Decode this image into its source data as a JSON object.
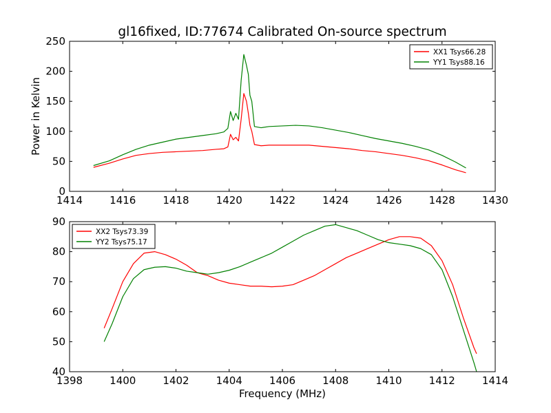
{
  "figure": {
    "title": "gl16fixed, ID:77674 Calibrated On-source spectrum"
  },
  "chart_data": [
    {
      "type": "line",
      "ylabel": "Power in Kelvin",
      "xlabel": "",
      "xlim": [
        1414,
        1430
      ],
      "ylim": [
        0,
        250
      ],
      "xticks": [
        1414,
        1416,
        1418,
        1420,
        1422,
        1424,
        1426,
        1428,
        1430
      ],
      "yticks": [
        0,
        50,
        100,
        150,
        200,
        250
      ],
      "legend_position": "top-right",
      "grid": false,
      "series": [
        {
          "name": "XX1 Tsys66.28",
          "color": "#ff0000",
          "points": [
            [
              1414.9,
              40
            ],
            [
              1415.5,
              47
            ],
            [
              1416,
              54
            ],
            [
              1416.5,
              60
            ],
            [
              1417,
              63
            ],
            [
              1417.5,
              65
            ],
            [
              1418,
              66
            ],
            [
              1418.5,
              67
            ],
            [
              1419,
              68
            ],
            [
              1419.5,
              70
            ],
            [
              1419.8,
              71
            ],
            [
              1419.95,
              74
            ],
            [
              1420.05,
              95
            ],
            [
              1420.15,
              86
            ],
            [
              1420.25,
              90
            ],
            [
              1420.35,
              84
            ],
            [
              1420.45,
              120
            ],
            [
              1420.55,
              163
            ],
            [
              1420.65,
              150
            ],
            [
              1420.72,
              130
            ],
            [
              1420.78,
              110
            ],
            [
              1420.85,
              100
            ],
            [
              1420.95,
              78
            ],
            [
              1421.2,
              76
            ],
            [
              1421.5,
              77
            ],
            [
              1422,
              77
            ],
            [
              1422.5,
              77
            ],
            [
              1423,
              77
            ],
            [
              1423.5,
              75
            ],
            [
              1424,
              73
            ],
            [
              1424.5,
              71
            ],
            [
              1425,
              68
            ],
            [
              1425.5,
              66
            ],
            [
              1426,
              63
            ],
            [
              1426.5,
              60
            ],
            [
              1427,
              56
            ],
            [
              1427.5,
              51
            ],
            [
              1428,
              44
            ],
            [
              1428.5,
              36
            ],
            [
              1428.9,
              31
            ]
          ]
        },
        {
          "name": "YY1 Tsys88.16",
          "color": "#008000",
          "points": [
            [
              1414.9,
              43
            ],
            [
              1415.5,
              51
            ],
            [
              1416,
              61
            ],
            [
              1416.5,
              70
            ],
            [
              1417,
              77
            ],
            [
              1417.5,
              82
            ],
            [
              1418,
              87
            ],
            [
              1418.5,
              90
            ],
            [
              1419,
              93
            ],
            [
              1419.5,
              96
            ],
            [
              1419.8,
              99
            ],
            [
              1419.95,
              105
            ],
            [
              1420.05,
              133
            ],
            [
              1420.15,
              118
            ],
            [
              1420.25,
              130
            ],
            [
              1420.35,
              120
            ],
            [
              1420.45,
              185
            ],
            [
              1420.55,
              228
            ],
            [
              1420.65,
              210
            ],
            [
              1420.72,
              195
            ],
            [
              1420.78,
              160
            ],
            [
              1420.85,
              150
            ],
            [
              1420.95,
              108
            ],
            [
              1421.2,
              106
            ],
            [
              1421.5,
              108
            ],
            [
              1422,
              109
            ],
            [
              1422.5,
              110
            ],
            [
              1423,
              109
            ],
            [
              1423.5,
              106
            ],
            [
              1424,
              102
            ],
            [
              1424.5,
              98
            ],
            [
              1425,
              93
            ],
            [
              1425.5,
              88
            ],
            [
              1426,
              84
            ],
            [
              1426.5,
              80
            ],
            [
              1427,
              75
            ],
            [
              1427.5,
              69
            ],
            [
              1428,
              60
            ],
            [
              1428.5,
              49
            ],
            [
              1428.9,
              39
            ]
          ]
        }
      ]
    },
    {
      "type": "line",
      "ylabel": "",
      "xlabel": "Frequency (MHz)",
      "xlim": [
        1398,
        1414
      ],
      "ylim": [
        40,
        90
      ],
      "xticks": [
        1398,
        1400,
        1402,
        1404,
        1406,
        1408,
        1410,
        1412,
        1414
      ],
      "yticks": [
        40,
        50,
        60,
        70,
        80,
        90
      ],
      "legend_position": "top-left",
      "grid": false,
      "series": [
        {
          "name": "XX2 Tsys73.39",
          "color": "#ff0000",
          "points": [
            [
              1399.3,
              54.5
            ],
            [
              1399.6,
              61
            ],
            [
              1400,
              70
            ],
            [
              1400.4,
              76
            ],
            [
              1400.8,
              79.5
            ],
            [
              1401.2,
              80
            ],
            [
              1401.6,
              79
            ],
            [
              1402,
              77.5
            ],
            [
              1402.4,
              75.5
            ],
            [
              1402.8,
              73
            ],
            [
              1403.2,
              72
            ],
            [
              1403.6,
              70.5
            ],
            [
              1404,
              69.5
            ],
            [
              1404.4,
              69
            ],
            [
              1404.8,
              68.5
            ],
            [
              1405.2,
              68.5
            ],
            [
              1405.6,
              68.3
            ],
            [
              1406,
              68.5
            ],
            [
              1406.4,
              69
            ],
            [
              1406.8,
              70.5
            ],
            [
              1407.2,
              72
            ],
            [
              1407.6,
              74
            ],
            [
              1408,
              76
            ],
            [
              1408.4,
              78
            ],
            [
              1408.8,
              79.5
            ],
            [
              1409.2,
              81
            ],
            [
              1409.6,
              82.5
            ],
            [
              1410,
              84
            ],
            [
              1410.4,
              85
            ],
            [
              1410.8,
              85
            ],
            [
              1411.2,
              84.5
            ],
            [
              1411.6,
              82
            ],
            [
              1412,
              77
            ],
            [
              1412.4,
              69
            ],
            [
              1412.8,
              58
            ],
            [
              1413.2,
              48
            ],
            [
              1413.3,
              46
            ]
          ]
        },
        {
          "name": "YY2 Tsys75.17",
          "color": "#008000",
          "points": [
            [
              1399.3,
              50
            ],
            [
              1399.6,
              56
            ],
            [
              1400,
              65
            ],
            [
              1400.4,
              71
            ],
            [
              1400.8,
              74
            ],
            [
              1401.2,
              74.8
            ],
            [
              1401.6,
              75
            ],
            [
              1402,
              74.5
            ],
            [
              1402.4,
              73.5
            ],
            [
              1402.8,
              73
            ],
            [
              1403.2,
              72.5
            ],
            [
              1403.6,
              73
            ],
            [
              1404,
              73.8
            ],
            [
              1404.4,
              75
            ],
            [
              1404.8,
              76.5
            ],
            [
              1405.2,
              78
            ],
            [
              1405.6,
              79.5
            ],
            [
              1406,
              81.5
            ],
            [
              1406.4,
              83.5
            ],
            [
              1406.8,
              85.5
            ],
            [
              1407.2,
              87
            ],
            [
              1407.6,
              88.5
            ],
            [
              1408,
              89
            ],
            [
              1408.4,
              88
            ],
            [
              1408.8,
              87
            ],
            [
              1409.2,
              85.5
            ],
            [
              1409.6,
              84
            ],
            [
              1410,
              83
            ],
            [
              1410.4,
              82.5
            ],
            [
              1410.8,
              82
            ],
            [
              1411.2,
              81
            ],
            [
              1411.6,
              79
            ],
            [
              1412,
              74
            ],
            [
              1412.4,
              65
            ],
            [
              1412.8,
              54
            ],
            [
              1413.2,
              43
            ],
            [
              1413.3,
              40
            ]
          ]
        }
      ]
    }
  ]
}
